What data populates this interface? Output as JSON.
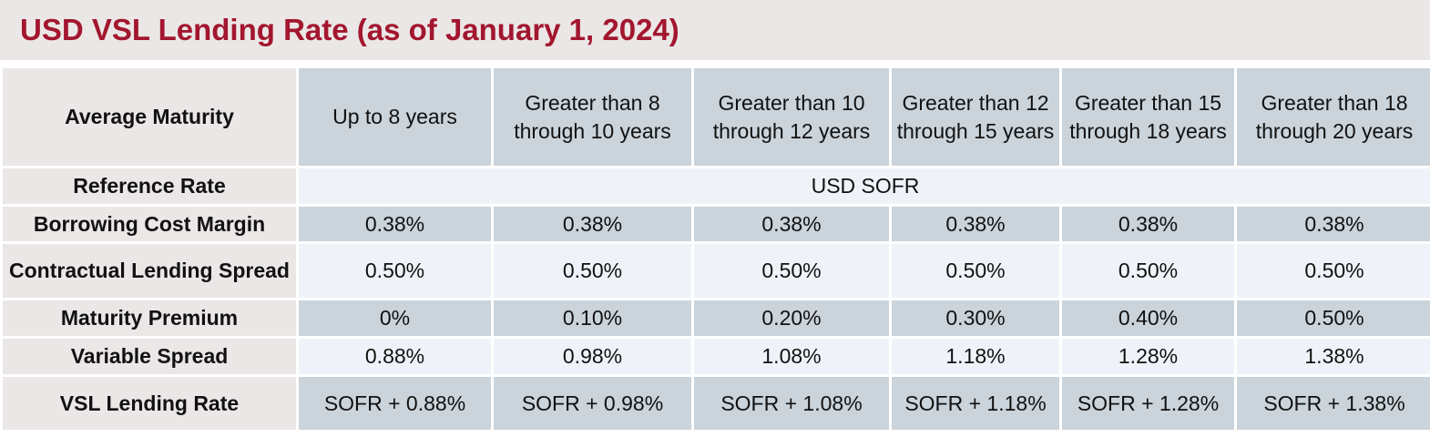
{
  "title": "USD VSL Lending Rate (as of January 1, 2024)",
  "table": {
    "header": {
      "label": "Average Maturity",
      "columns": [
        "Up to 8 years",
        "Greater than 8 through 10 years",
        "Greater than 10 through 12 years",
        "Greater than 12 through 15 years",
        "Greater than 15 through 18 years",
        "Greater than 18 through 20 years"
      ]
    },
    "reference_rate": {
      "label": "Reference Rate",
      "value": "USD SOFR"
    },
    "borrowing_cost_margin": {
      "label": "Borrowing Cost Margin",
      "values": [
        "0.38%",
        "0.38%",
        "0.38%",
        "0.38%",
        "0.38%",
        "0.38%"
      ]
    },
    "contractual_lending_spread": {
      "label": "Contractual Lending Spread",
      "values": [
        "0.50%",
        "0.50%",
        "0.50%",
        "0.50%",
        "0.50%",
        "0.50%"
      ]
    },
    "maturity_premium": {
      "label": "Maturity Premium",
      "values": [
        "0%",
        "0.10%",
        "0.20%",
        "0.30%",
        "0.40%",
        "0.50%"
      ]
    },
    "variable_spread": {
      "label": "Variable Spread",
      "values": [
        "0.88%",
        "0.98%",
        "1.08%",
        "1.18%",
        "1.28%",
        "1.38%"
      ]
    },
    "vsl_lending_rate": {
      "label": "VSL Lending Rate",
      "values": [
        "SOFR + 0.88%",
        "SOFR + 0.98%",
        "SOFR + 1.08%",
        "SOFR + 1.18%",
        "SOFR + 1.28%",
        "SOFR + 1.38%"
      ]
    }
  },
  "colors": {
    "title_text": "#a3162f",
    "label_background": "#ebe7e6",
    "dark_cell": "#cbd4db",
    "light_cell": "#eff3f9"
  }
}
